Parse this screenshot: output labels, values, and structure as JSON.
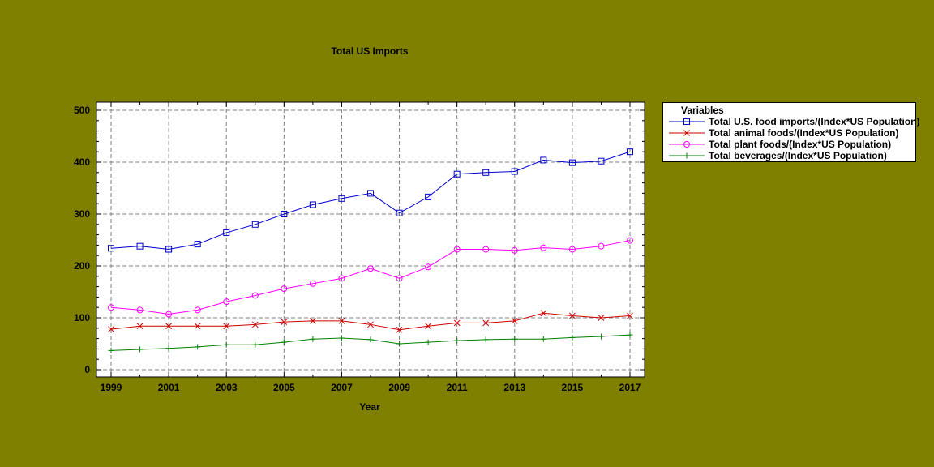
{
  "chart_data": {
    "type": "line",
    "title": "Total US Imports",
    "xlabel": "Year",
    "ylabel": "",
    "x": [
      1999,
      2000,
      2001,
      2002,
      2003,
      2004,
      2005,
      2006,
      2007,
      2008,
      2009,
      2010,
      2011,
      2012,
      2013,
      2014,
      2015,
      2016,
      2017
    ],
    "xticks": [
      1999,
      2001,
      2003,
      2005,
      2007,
      2009,
      2011,
      2013,
      2015,
      2017
    ],
    "yticks": [
      0,
      100,
      200,
      300,
      400,
      500
    ],
    "xlim": [
      1999,
      2017
    ],
    "ylim": [
      0,
      500
    ],
    "grid": true,
    "legend_title": "Variables",
    "legend_position": "right",
    "series": [
      {
        "name": "Total U.S. food imports/(Index*US Population)",
        "color": "#0000cc",
        "marker": "square",
        "values": [
          234,
          238,
          232,
          242,
          264,
          280,
          300,
          318,
          330,
          340,
          302,
          333,
          377,
          380,
          382,
          404,
          399,
          402,
          420
        ]
      },
      {
        "name": "Total animal foods/(Index*US Population)",
        "color": "#cc0000",
        "marker": "x",
        "values": [
          78,
          84,
          84,
          84,
          84,
          87,
          92,
          94,
          94,
          87,
          77,
          84,
          90,
          90,
          94,
          109,
          104,
          100,
          104
        ]
      },
      {
        "name": "Total plant foods/(Index*US Population)",
        "color": "#ff00ff",
        "marker": "circle",
        "values": [
          120,
          115,
          107,
          115,
          131,
          143,
          156,
          166,
          176,
          195,
          176,
          198,
          232,
          232,
          230,
          235,
          232,
          238,
          249
        ]
      },
      {
        "name": "Total beverages/(Index*US Population)",
        "color": "#008000",
        "marker": "plus",
        "values": [
          37,
          39,
          41,
          44,
          48,
          48,
          53,
          59,
          61,
          58,
          50,
          53,
          56,
          58,
          59,
          59,
          62,
          64,
          67
        ]
      }
    ]
  }
}
